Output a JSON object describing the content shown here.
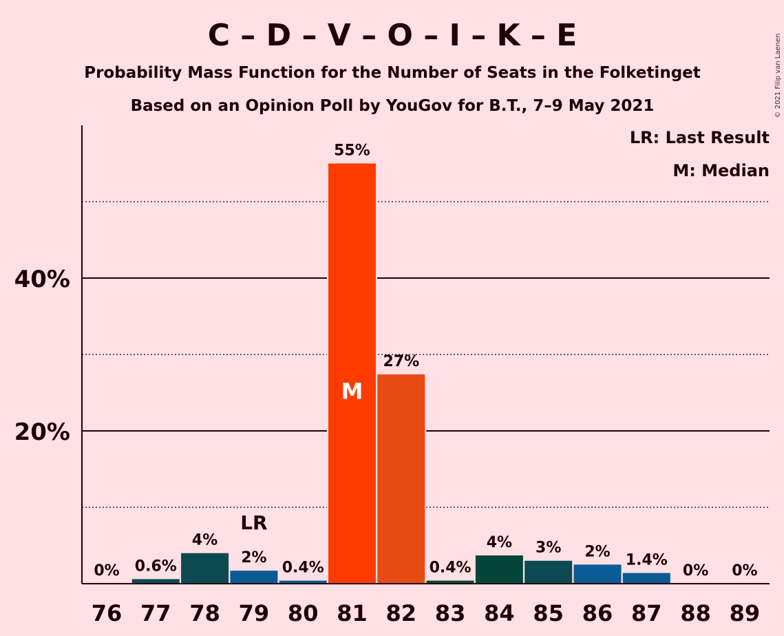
{
  "chart_data": {
    "type": "bar",
    "title": "C – D – V – O – I – K – E",
    "subtitle": "Probability Mass Function for the Number of Seats in the Folketinget",
    "subtitle2": "Based on an Opinion Poll by YouGov for B.T., 7–9 May 2021",
    "copyright": "© 2021 Filip van Laenen",
    "legend": {
      "lr": "LR: Last Result",
      "m": "M: Median",
      "placement": "top-right"
    },
    "ylim": [
      0,
      60
    ],
    "yticks": [
      {
        "value": 20,
        "label": "20%"
      },
      {
        "value": 40,
        "label": "40%"
      }
    ],
    "minor_gridlines": [
      10,
      30,
      50
    ],
    "categories": [
      "76",
      "77",
      "78",
      "79",
      "80",
      "81",
      "82",
      "83",
      "84",
      "85",
      "86",
      "87",
      "88",
      "89"
    ],
    "values": [
      0,
      0.6,
      4,
      1.7,
      0.4,
      55,
      27.4,
      0.4,
      3.7,
      3,
      2.5,
      1.4,
      0,
      0
    ],
    "labels": [
      "0%",
      "0.6%",
      "4%",
      "2%",
      "0.4%",
      "55%",
      "27%",
      "0.4%",
      "4%",
      "3%",
      "2%",
      "1.4%",
      "0%",
      "0%"
    ],
    "colors": [
      "#0b4a50",
      "#0b4a50",
      "#0b4a50",
      "#0a5a96",
      "#0a5a96",
      "#ff3c00",
      "#e84a14",
      "#06463a",
      "#06463a",
      "#0b4a50",
      "#0a5a96",
      "#0a5a96",
      "#0a5a96",
      "#0a5a96"
    ],
    "last_result": {
      "category": "79",
      "label": "LR"
    },
    "median": {
      "category": "81",
      "label": "M"
    }
  }
}
